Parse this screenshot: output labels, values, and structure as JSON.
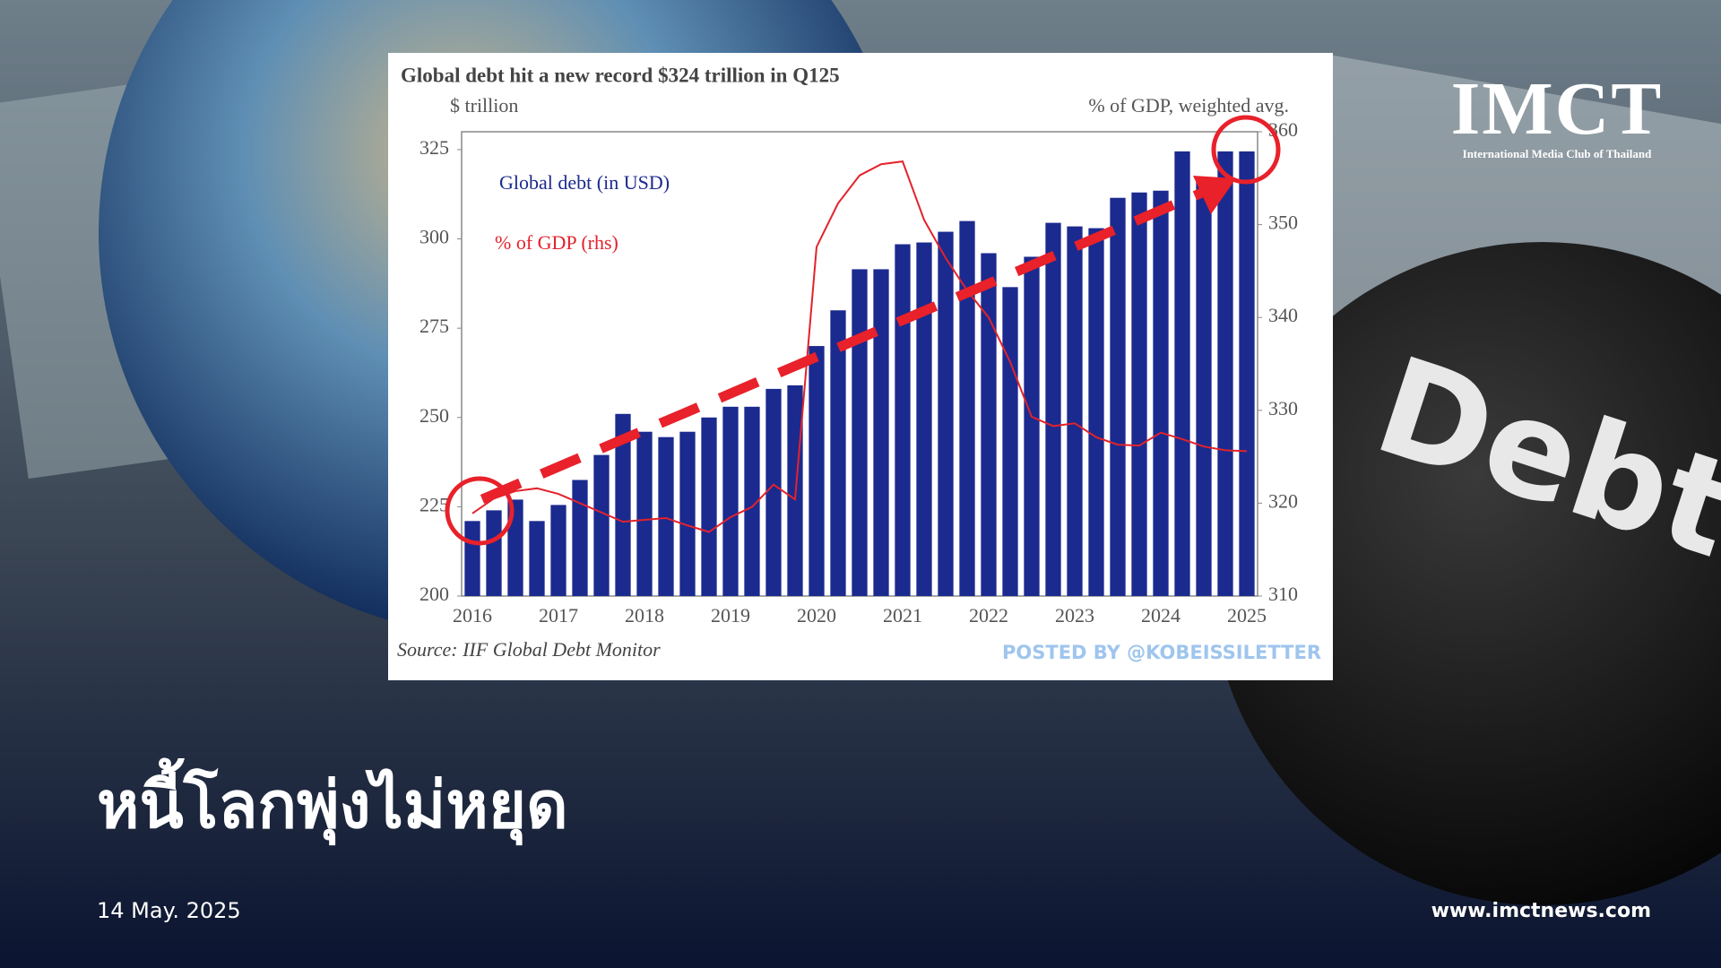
{
  "chart_data": {
    "type": "bar",
    "title": "Global debt hit a new record $324 trillion in Q125",
    "y_label": "$ trillion",
    "y2_label": "% of GDP, weighted avg.",
    "source": "Source: IIF Global Debt Monitor",
    "credit": "POSTED BY @KOBEISSILETTER",
    "categories": [
      "2016",
      null,
      null,
      null,
      "2017",
      null,
      null,
      null,
      "2018",
      null,
      null,
      null,
      "2019",
      null,
      null,
      null,
      "2020",
      null,
      null,
      null,
      "2021",
      null,
      null,
      null,
      "2022",
      null,
      null,
      null,
      "2023",
      null,
      null,
      null,
      "2024",
      null,
      null,
      null,
      "2025"
    ],
    "series": [
      {
        "name": "Global debt (in USD)",
        "type": "bar",
        "color": "#1b2a8e",
        "values": [
          221,
          224,
          227,
          221,
          225.5,
          232.5,
          239.5,
          251,
          246,
          244.5,
          246,
          250,
          253,
          253,
          258,
          259,
          270,
          280,
          291.5,
          291.5,
          298.5,
          299,
          302,
          305,
          296,
          286.5,
          295,
          304.5,
          303.5,
          303,
          311.5,
          313,
          313.5,
          324.5,
          317,
          324.5,
          324.5
        ]
      },
      {
        "name": "% of GDP (rhs)",
        "type": "line",
        "axis": "y2",
        "color": "#e3222b",
        "values": [
          318.9,
          320.5,
          321.3,
          321.6,
          321,
          320,
          319,
          318,
          318.2,
          318.4,
          317.6,
          316.9,
          318.5,
          319.6,
          322,
          320.4,
          347.6,
          352.3,
          355.3,
          356.5,
          356.8,
          350.5,
          346.4,
          342.9,
          340,
          335.2,
          329.3,
          328.3,
          328.6,
          327.1,
          326.3,
          326.2,
          327.6,
          326.9,
          326.1,
          325.7,
          325.6
        ]
      }
    ],
    "ylim": [
      200,
      330
    ],
    "yticks": [
      200,
      225,
      250,
      275,
      300,
      325
    ],
    "y2lim": [
      310,
      360
    ],
    "y2ticks": [
      310,
      320,
      330,
      340,
      350,
      360
    ]
  },
  "headline": "หนี้โลกพุ่งไม่หยุด",
  "date": "14 May. 2025",
  "website": "www.imctnews.com",
  "logo": {
    "title": "IMCT",
    "subtitle": "International Media Club of Thailand"
  },
  "background_text": "Debt"
}
